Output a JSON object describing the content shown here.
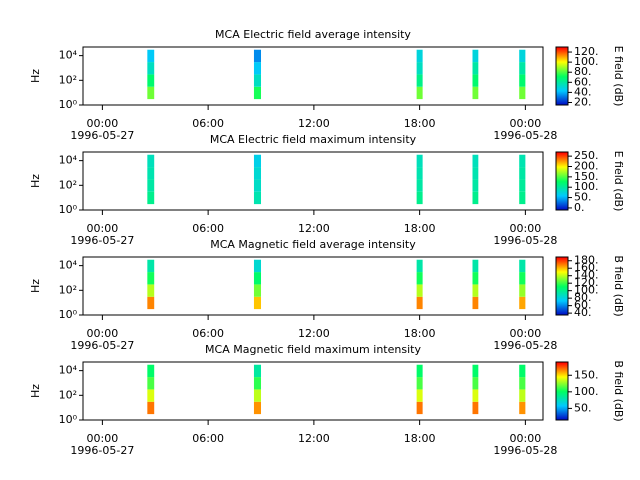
{
  "chart_data": [
    {
      "type": "heatmap",
      "title": "MCA  Electric field average intensity",
      "ylabel": "Hz",
      "xlim": [
        -1.1,
        25
      ],
      "xticks": [
        {
          "value": 0,
          "label": "00:00",
          "sublabel": "1996-05-27"
        },
        {
          "value": 6,
          "label": "06:00"
        },
        {
          "value": 12,
          "label": "12:00"
        },
        {
          "value": 18,
          "label": "18:00"
        },
        {
          "value": 24,
          "label": "00:00",
          "sublabel": "1996-05-28"
        }
      ],
      "ylim": [
        1,
        50000
      ],
      "log_y": true,
      "yticks": [
        {
          "value": 1,
          "label": "10⁰"
        },
        {
          "value": 100,
          "label": "10²"
        },
        {
          "value": 10000,
          "label": "10⁴"
        }
      ],
      "y_bins": [
        3,
        30,
        300,
        3000,
        30000
      ],
      "passes": [
        {
          "start": 2.55,
          "end": 2.94,
          "values": [
            85,
            70,
            55,
            45
          ]
        },
        {
          "start": 8.6,
          "end": 9.0,
          "values": [
            75,
            55,
            45,
            35
          ]
        },
        {
          "start": 17.83,
          "end": 18.17,
          "values": [
            85,
            65,
            55,
            50
          ]
        },
        {
          "start": 21.0,
          "end": 21.33,
          "values": [
            85,
            70,
            60,
            50
          ]
        },
        {
          "start": 23.65,
          "end": 24.0,
          "values": [
            85,
            70,
            60,
            50
          ]
        }
      ],
      "colormap": [
        "#0000c0",
        "#00c8ff",
        "#00ff60",
        "#ffff00",
        "#ff0000"
      ],
      "colorbar": {
        "label": "E field (dB)",
        "lim": [
          15,
          130
        ],
        "ticks": [
          {
            "value": 20,
            "label": "20."
          },
          {
            "value": 40,
            "label": "40."
          },
          {
            "value": 60,
            "label": "60."
          },
          {
            "value": 80,
            "label": "80."
          },
          {
            "value": 100,
            "label": "100."
          },
          {
            "value": 120,
            "label": "120."
          }
        ]
      }
    },
    {
      "type": "heatmap",
      "title": "MCA  Electric field maximum intensity",
      "ylabel": "Hz",
      "xlim": [
        -1.1,
        25
      ],
      "xticks": [
        {
          "value": 0,
          "label": "00:00",
          "sublabel": "1996-05-27"
        },
        {
          "value": 6,
          "label": "06:00"
        },
        {
          "value": 12,
          "label": "12:00"
        },
        {
          "value": 18,
          "label": "18:00"
        },
        {
          "value": 24,
          "label": "00:00",
          "sublabel": "1996-05-28"
        }
      ],
      "ylim": [
        1,
        50000
      ],
      "log_y": true,
      "yticks": [
        {
          "value": 1,
          "label": "10⁰"
        },
        {
          "value": 100,
          "label": "10²"
        },
        {
          "value": 10000,
          "label": "10⁴"
        }
      ],
      "y_bins": [
        3,
        30,
        300,
        3000,
        30000
      ],
      "passes": [
        {
          "start": 2.55,
          "end": 2.94,
          "values": [
            110,
            100,
            95,
            90
          ]
        },
        {
          "start": 8.6,
          "end": 9.0,
          "values": [
            95,
            85,
            80,
            70
          ]
        },
        {
          "start": 17.83,
          "end": 18.17,
          "values": [
            110,
            100,
            95,
            90
          ]
        },
        {
          "start": 21.0,
          "end": 21.33,
          "values": [
            110,
            100,
            95,
            90
          ]
        },
        {
          "start": 23.65,
          "end": 24.0,
          "values": [
            110,
            105,
            100,
            95
          ]
        }
      ],
      "colormap": [
        "#0000c0",
        "#00c8ff",
        "#00ff60",
        "#ffff00",
        "#ff0000"
      ],
      "colorbar": {
        "label": "E field (dB)",
        "lim": [
          -10,
          270
        ],
        "ticks": [
          {
            "value": 0,
            "label": "0."
          },
          {
            "value": 50,
            "label": "50."
          },
          {
            "value": 100,
            "label": "100."
          },
          {
            "value": 150,
            "label": "150."
          },
          {
            "value": 200,
            "label": "200."
          },
          {
            "value": 250,
            "label": "250."
          }
        ]
      }
    },
    {
      "type": "heatmap",
      "title": "MCA  Magnetic field average intensity",
      "ylabel": "Hz",
      "xlim": [
        -1.1,
        25
      ],
      "xticks": [
        {
          "value": 0,
          "label": "00:00",
          "sublabel": "1996-05-27"
        },
        {
          "value": 6,
          "label": "06:00"
        },
        {
          "value": 12,
          "label": "12:00"
        },
        {
          "value": 18,
          "label": "18:00"
        },
        {
          "value": 24,
          "label": "00:00",
          "sublabel": "1996-05-28"
        }
      ],
      "ylim": [
        1,
        50000
      ],
      "log_y": true,
      "yticks": [
        {
          "value": 1,
          "label": "10⁰"
        },
        {
          "value": 100,
          "label": "10²"
        },
        {
          "value": 10000,
          "label": "10⁴"
        }
      ],
      "y_bins": [
        3,
        30,
        300,
        3000,
        30000
      ],
      "passes": [
        {
          "start": 2.55,
          "end": 2.94,
          "values": [
            170,
            140,
            115,
            95
          ]
        },
        {
          "start": 8.6,
          "end": 9.0,
          "values": [
            160,
            130,
            110,
            85
          ]
        },
        {
          "start": 17.83,
          "end": 18.17,
          "values": [
            170,
            140,
            115,
            95
          ]
        },
        {
          "start": 21.0,
          "end": 21.33,
          "values": [
            170,
            140,
            115,
            95
          ]
        },
        {
          "start": 23.65,
          "end": 24.0,
          "values": [
            165,
            135,
            115,
            95
          ]
        }
      ],
      "colormap": [
        "#0000c0",
        "#00c8ff",
        "#00ff60",
        "#ffff00",
        "#ff0000"
      ],
      "colorbar": {
        "label": "B field (dB)",
        "lim": [
          35,
          190
        ],
        "ticks": [
          {
            "value": 40,
            "label": "40."
          },
          {
            "value": 60,
            "label": "60."
          },
          {
            "value": 80,
            "label": "80."
          },
          {
            "value": 100,
            "label": "100."
          },
          {
            "value": 120,
            "label": "120."
          },
          {
            "value": 140,
            "label": "140."
          },
          {
            "value": 160,
            "label": "160."
          },
          {
            "value": 180,
            "label": "180."
          }
        ]
      }
    },
    {
      "type": "heatmap",
      "title": "MCA  Magnetic field maximum intensity",
      "ylabel": "Hz",
      "xlim": [
        -1.1,
        25
      ],
      "xticks": [
        {
          "value": 0,
          "label": "00:00",
          "sublabel": "1996-05-27"
        },
        {
          "value": 6,
          "label": "06:00"
        },
        {
          "value": 12,
          "label": "12:00"
        },
        {
          "value": 18,
          "label": "18:00"
        },
        {
          "value": 24,
          "label": "00:00",
          "sublabel": "1996-05-28"
        }
      ],
      "ylim": [
        1,
        50000
      ],
      "log_y": true,
      "yticks": [
        {
          "value": 1,
          "label": "10⁰"
        },
        {
          "value": 100,
          "label": "10²"
        },
        {
          "value": 10000,
          "label": "10⁴"
        }
      ],
      "y_bins": [
        3,
        30,
        300,
        3000,
        30000
      ],
      "passes": [
        {
          "start": 2.55,
          "end": 2.94,
          "values": [
            170,
            140,
            115,
            100
          ]
        },
        {
          "start": 8.6,
          "end": 9.0,
          "values": [
            165,
            135,
            110,
            85
          ]
        },
        {
          "start": 17.83,
          "end": 18.17,
          "values": [
            170,
            140,
            115,
            100
          ]
        },
        {
          "start": 21.0,
          "end": 21.33,
          "values": [
            170,
            140,
            115,
            100
          ]
        },
        {
          "start": 23.65,
          "end": 24.0,
          "values": [
            165,
            135,
            115,
            100
          ]
        }
      ],
      "colormap": [
        "#0000c0",
        "#00c8ff",
        "#00ff60",
        "#ffff00",
        "#ff0000"
      ],
      "colorbar": {
        "label": "B field (dB)",
        "lim": [
          15,
          190
        ],
        "ticks": [
          {
            "value": 50,
            "label": "50."
          },
          {
            "value": 100,
            "label": "100."
          },
          {
            "value": 150,
            "label": "150."
          }
        ]
      }
    }
  ]
}
